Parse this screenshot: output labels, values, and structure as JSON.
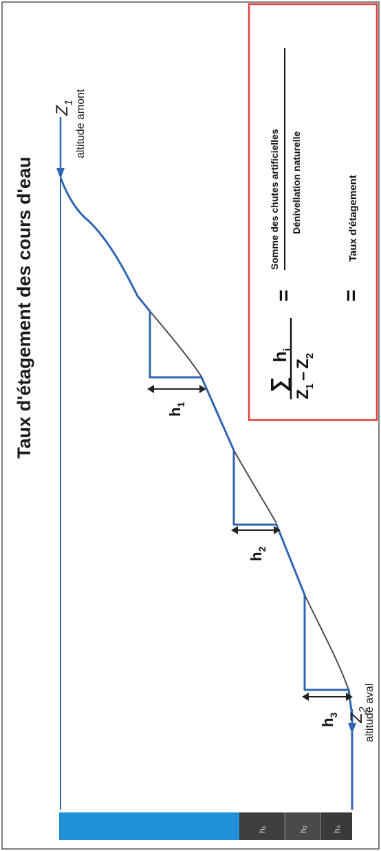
{
  "title": "Taux d'étagement des cours d'eau",
  "upstream": {
    "symbol": "Z",
    "subscript": "1",
    "caption": "altitude amont"
  },
  "downstream": {
    "symbol": "Z",
    "subscript": "2",
    "caption": "altitude aval"
  },
  "drops": [
    {
      "symbol": "h",
      "subscript": "1"
    },
    {
      "symbol": "h",
      "subscript": "2"
    },
    {
      "symbol": "h",
      "subscript": "3"
    }
  ],
  "legend_bar": {
    "segments": [
      "h₁",
      "h₂",
      "h₃"
    ]
  },
  "formula": {
    "sigma": "∑",
    "numerator_symbol": "h",
    "numerator_subscript": "i",
    "denominator_left": "Z",
    "denominator_left_sub": "1",
    "minus": "–",
    "denominator_right": "Z",
    "denominator_right_sub": "2",
    "equals": "=",
    "word_numerator": "Somme des chutes artificielles",
    "word_denominator": "Dénivellation naturelle",
    "result": "Taux d'étagement"
  },
  "colors": {
    "river": "#2f64b4",
    "natural": "#4a4a4a",
    "frame": "#e03c3c",
    "bar_blue": "#1f8fd8",
    "bar_dark": "#3e3e3e"
  }
}
